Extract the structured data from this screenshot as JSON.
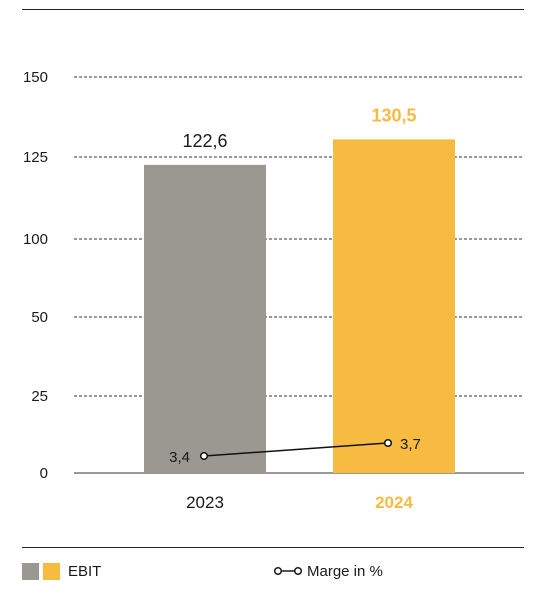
{
  "chart_data": {
    "type": "bar",
    "categories": [
      "2023",
      "2024"
    ],
    "series": [
      {
        "name": "EBIT",
        "values": [
          122.6,
          130.5
        ],
        "labels": [
          "122,6",
          "130,5"
        ],
        "colors": [
          "#9a9890",
          "#f7bb41"
        ]
      },
      {
        "name": "Marge in %",
        "type": "line",
        "values": [
          3.4,
          3.7
        ],
        "labels": [
          "3,4",
          "3,7"
        ]
      }
    ],
    "y_ticks": [
      0,
      25,
      50,
      100,
      125,
      150
    ],
    "ylim": [
      0,
      150
    ],
    "grid": true,
    "legend": "bottom",
    "highlight_color": "#f7bb41",
    "text_color": "#1a1a1a"
  },
  "legend": {
    "ebit_label": "EBIT",
    "marge_label": "Marge in %"
  }
}
